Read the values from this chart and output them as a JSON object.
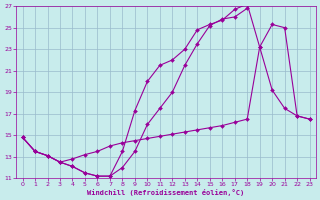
{
  "xlabel": "Windchill (Refroidissement éolien,°C)",
  "background_color": "#c8ecec",
  "grid_color": "#99bbcc",
  "line_color": "#990099",
  "xlim": [
    -0.5,
    23.5
  ],
  "ylim": [
    11,
    27
  ],
  "xticks": [
    0,
    1,
    2,
    3,
    4,
    5,
    6,
    7,
    8,
    9,
    10,
    11,
    12,
    13,
    14,
    15,
    16,
    17,
    18,
    19,
    20,
    21,
    22,
    23
  ],
  "yticks": [
    11,
    13,
    15,
    17,
    19,
    21,
    23,
    25,
    27
  ],
  "curve1_x": [
    0,
    1,
    2,
    3,
    4,
    5,
    6,
    7,
    8,
    9,
    10,
    11,
    12,
    13,
    14,
    15,
    16,
    17,
    18
  ],
  "curve1_y": [
    14.8,
    13.5,
    13.1,
    12.5,
    12.1,
    11.5,
    11.2,
    11.2,
    12.0,
    13.5,
    16.0,
    17.5,
    19.0,
    21.5,
    23.5,
    25.2,
    25.8,
    26.0,
    26.8
  ],
  "curve2_x": [
    0,
    1,
    2,
    3,
    4,
    5,
    6,
    7,
    8,
    9,
    10,
    11,
    12,
    13,
    14,
    15,
    16,
    17,
    18,
    19,
    20,
    21,
    22,
    23
  ],
  "curve2_y": [
    14.8,
    13.5,
    13.1,
    12.5,
    12.1,
    11.5,
    11.2,
    11.2,
    13.5,
    17.3,
    20.0,
    21.5,
    22.0,
    23.0,
    24.8,
    25.3,
    25.7,
    26.7,
    27.2,
    23.2,
    19.2,
    17.5,
    16.8,
    16.5
  ],
  "curve3_x": [
    0,
    1,
    2,
    3,
    4,
    5,
    6,
    7,
    8,
    9,
    10,
    11,
    12,
    13,
    14,
    15,
    16,
    17,
    18,
    19,
    20,
    21,
    22,
    23
  ],
  "curve3_y": [
    14.8,
    13.5,
    13.1,
    12.5,
    12.8,
    13.2,
    13.5,
    14.0,
    14.3,
    14.5,
    14.7,
    14.9,
    15.1,
    15.3,
    15.5,
    15.7,
    15.9,
    16.2,
    16.5,
    23.2,
    25.3,
    25.0,
    16.8,
    16.5
  ]
}
